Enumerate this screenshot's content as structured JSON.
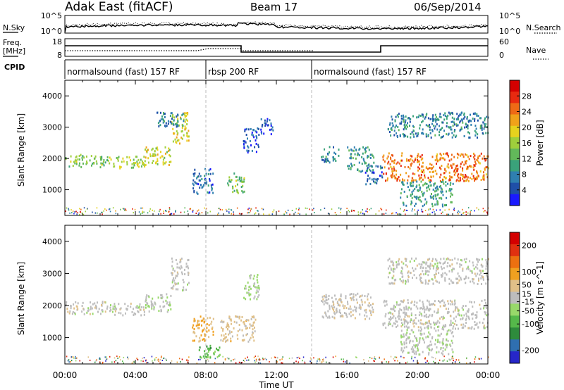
{
  "header": {
    "station": "Adak East (fitACF)",
    "beam": "Beam 17",
    "date": "06/Sep/2014"
  },
  "top_panels": {
    "nsky_label": "N.Sky",
    "nsky_ticks": [
      "10^5",
      "10^0"
    ],
    "nsearch_label": "N.Search",
    "nsearch_ticks": [
      "10^5",
      "10^0"
    ],
    "freq_label": "Freq.",
    "freq_unit": "[MHz]",
    "freq_ticks": [
      "18",
      "8"
    ],
    "nave_label": "Nave",
    "nave_ticks": [
      "60",
      "0"
    ],
    "cpid_label": "CPID",
    "cpid_segments": [
      {
        "label": "normalsound (fast) 157 RF",
        "start_h": 0,
        "end_h": 8
      },
      {
        "label": "rbsp 200 RF",
        "start_h": 8,
        "end_h": 14
      },
      {
        "label": "normalsound (fast) 157 RF",
        "start_h": 14,
        "end_h": 24
      }
    ]
  },
  "colors": {
    "power_scale": [
      "#1a1aff",
      "#1f4fa8",
      "#2f7fb0",
      "#3aa27a",
      "#62b85a",
      "#9fcf3c",
      "#e6d21e",
      "#f0a21a",
      "#ee6a16",
      "#e82a10",
      "#d40000"
    ],
    "velocity_scale": [
      "#2626c9",
      "#2f6fb0",
      "#2e8b3c",
      "#55b84a",
      "#98d86a",
      "#bdbdbd",
      "#e0c088",
      "#f0a020",
      "#ec7010",
      "#e03010",
      "#d40000"
    ]
  },
  "chart_data": [
    {
      "type": "heatmap",
      "title": "Power",
      "xlabel": "Time UT",
      "ylabel": "Slant Range [km]",
      "x_ticks": [
        "00:00",
        "04:00",
        "08:00",
        "12:00",
        "16:00",
        "20:00",
        "00:00"
      ],
      "xlim_hours": [
        0,
        24
      ],
      "y_ticks": [
        1000,
        2000,
        3000,
        4000
      ],
      "ylim": [
        180,
        4500
      ],
      "colorbar": {
        "label": "Power [dB]",
        "ticks": [
          4,
          8,
          12,
          16,
          20,
          24,
          28
        ],
        "range": [
          0,
          32
        ]
      },
      "echo_regions": [
        {
          "t": [
            0,
            2.5
          ],
          "range": [
            1750,
            2150
          ],
          "val": 14
        },
        {
          "t": [
            2.5,
            4.5
          ],
          "range": [
            1700,
            2100
          ],
          "val": 16
        },
        {
          "t": [
            4.5,
            6
          ],
          "range": [
            1800,
            2400
          ],
          "val": 18
        },
        {
          "t": [
            6,
            7
          ],
          "range": [
            2500,
            3500
          ],
          "val": 18
        },
        {
          "t": [
            5.2,
            6.8
          ],
          "range": [
            3000,
            3500
          ],
          "val": 8
        },
        {
          "t": [
            7.2,
            8.4
          ],
          "range": [
            900,
            1700
          ],
          "val": 6
        },
        {
          "t": [
            9.2,
            10.2
          ],
          "range": [
            900,
            1600
          ],
          "val": 14
        },
        {
          "t": [
            10.1,
            11
          ],
          "range": [
            2200,
            3000
          ],
          "val": 5
        },
        {
          "t": [
            11,
            11.8
          ],
          "range": [
            2800,
            3300
          ],
          "val": 4
        },
        {
          "t": [
            14.5,
            15.5
          ],
          "range": [
            1900,
            2400
          ],
          "val": 8
        },
        {
          "t": [
            16,
            17.5
          ],
          "range": [
            1600,
            2400
          ],
          "val": 10
        },
        {
          "t": [
            17,
            18
          ],
          "range": [
            1200,
            1800
          ],
          "val": 6
        },
        {
          "t": [
            18,
            24
          ],
          "range": [
            1300,
            2200
          ],
          "val": 24
        },
        {
          "t": [
            18.3,
            24
          ],
          "range": [
            2700,
            3500
          ],
          "val": 8
        },
        {
          "t": [
            19,
            22
          ],
          "range": [
            500,
            1300
          ],
          "val": 10
        }
      ]
    },
    {
      "type": "heatmap",
      "title": "Velocity",
      "xlabel": "Time UT",
      "ylabel": "Slant Range [km]",
      "x_ticks": [
        "00:00",
        "04:00",
        "08:00",
        "12:00",
        "16:00",
        "20:00",
        "00:00"
      ],
      "xlim_hours": [
        0,
        24
      ],
      "y_ticks": [
        1000,
        2000,
        3000,
        4000
      ],
      "ylim": [
        180,
        4500
      ],
      "colorbar": {
        "label": "Velocity [m s^-1]",
        "ticks": [
          200,
          100,
          50,
          15,
          -15,
          -50,
          -100,
          -200
        ],
        "range": [
          -250,
          250
        ]
      },
      "echo_regions": [
        {
          "t": [
            0,
            2.5
          ],
          "range": [
            1750,
            2150
          ],
          "val": 0
        },
        {
          "t": [
            2.5,
            4.5
          ],
          "range": [
            1700,
            2100
          ],
          "val": 0
        },
        {
          "t": [
            4.5,
            6
          ],
          "range": [
            1800,
            2400
          ],
          "val": -10
        },
        {
          "t": [
            6,
            7
          ],
          "range": [
            2500,
            3500
          ],
          "val": 0
        },
        {
          "t": [
            7.2,
            8.4
          ],
          "range": [
            900,
            1700
          ],
          "val": 80
        },
        {
          "t": [
            7.5,
            8.8
          ],
          "range": [
            400,
            800
          ],
          "val": -90
        },
        {
          "t": [
            8.8,
            10.8
          ],
          "range": [
            900,
            1700
          ],
          "val": 40
        },
        {
          "t": [
            10.1,
            11
          ],
          "range": [
            2200,
            3000
          ],
          "val": -30
        },
        {
          "t": [
            14.5,
            17.5
          ],
          "range": [
            1600,
            2400
          ],
          "val": 10
        },
        {
          "t": [
            18,
            24
          ],
          "range": [
            1300,
            2200
          ],
          "val": 0
        },
        {
          "t": [
            18.3,
            24
          ],
          "range": [
            2700,
            3500
          ],
          "val": 0
        },
        {
          "t": [
            19,
            22
          ],
          "range": [
            500,
            1300
          ],
          "val": -10
        }
      ]
    }
  ]
}
